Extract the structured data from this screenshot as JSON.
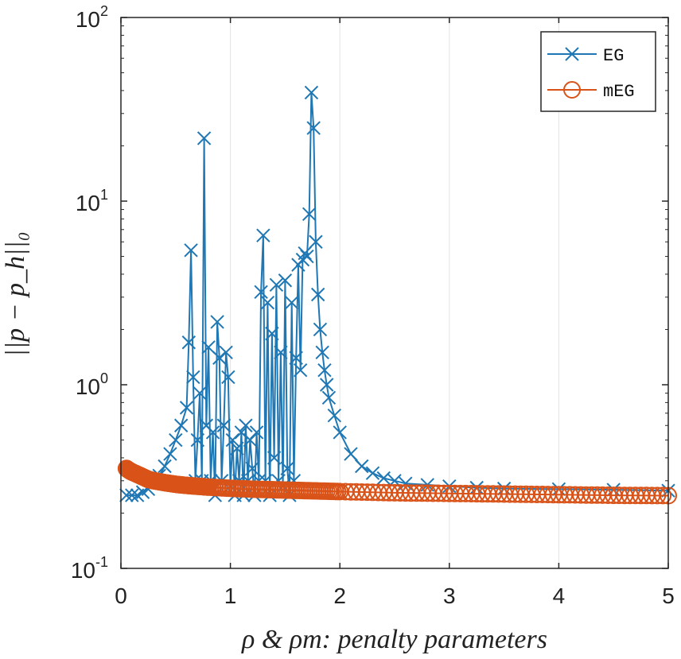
{
  "chart_data": {
    "type": "line",
    "title": "",
    "xlabel": "ρ & ρm: penalty parameters",
    "ylabel": "||p − p_h||₀",
    "xlim": [
      0,
      5
    ],
    "ylim": [
      0.1,
      100
    ],
    "yscale": "log",
    "xticks": [
      0,
      1,
      2,
      3,
      4,
      5
    ],
    "xtick_labels": [
      "0",
      "1",
      "2",
      "3",
      "4",
      "5"
    ],
    "yticks": [
      0.1,
      1,
      10,
      100
    ],
    "ytick_labels": [
      {
        "base": "10",
        "exp": "-1"
      },
      {
        "base": "10",
        "exp": "0"
      },
      {
        "base": "10",
        "exp": "1"
      },
      {
        "base": "10",
        "exp": "2"
      }
    ],
    "grid": "x",
    "legend_position": "top-right",
    "series": [
      {
        "name": "EG",
        "color": "#1f77b4",
        "marker": "x",
        "x": [
          0.05,
          0.1,
          0.15,
          0.2,
          0.25,
          0.3,
          0.35,
          0.4,
          0.45,
          0.5,
          0.55,
          0.6,
          0.62,
          0.64,
          0.66,
          0.68,
          0.7,
          0.72,
          0.74,
          0.76,
          0.78,
          0.8,
          0.82,
          0.84,
          0.86,
          0.88,
          0.9,
          0.92,
          0.94,
          0.96,
          0.98,
          1.0,
          1.02,
          1.04,
          1.06,
          1.08,
          1.1,
          1.12,
          1.14,
          1.16,
          1.18,
          1.2,
          1.22,
          1.24,
          1.26,
          1.28,
          1.3,
          1.32,
          1.34,
          1.36,
          1.38,
          1.4,
          1.42,
          1.44,
          1.46,
          1.48,
          1.5,
          1.52,
          1.54,
          1.56,
          1.58,
          1.6,
          1.62,
          1.64,
          1.66,
          1.68,
          1.7,
          1.72,
          1.74,
          1.76,
          1.78,
          1.8,
          1.82,
          1.84,
          1.86,
          1.88,
          1.9,
          1.95,
          2.0,
          2.1,
          2.2,
          2.3,
          2.4,
          2.5,
          2.6,
          2.8,
          3.0,
          3.25,
          3.5,
          4.0,
          4.5,
          5.0
        ],
        "values": [
          0.25,
          0.25,
          0.25,
          0.26,
          0.27,
          0.29,
          0.32,
          0.36,
          0.42,
          0.5,
          0.6,
          0.75,
          1.7,
          5.4,
          1.1,
          0.3,
          0.5,
          0.9,
          0.3,
          22.0,
          0.6,
          1.6,
          0.3,
          0.55,
          0.25,
          2.2,
          1.4,
          0.3,
          0.6,
          1.5,
          1.1,
          0.28,
          0.5,
          0.25,
          0.45,
          0.3,
          0.55,
          0.25,
          0.6,
          0.3,
          0.5,
          0.35,
          0.25,
          0.55,
          0.3,
          3.2,
          6.5,
          0.3,
          2.8,
          0.25,
          1.9,
          0.4,
          3.5,
          0.3,
          1.5,
          0.28,
          3.7,
          0.35,
          0.25,
          2.8,
          0.3,
          1.4,
          4.5,
          1.2,
          4.8,
          5.2,
          5.0,
          8.5,
          39.0,
          25.0,
          6.0,
          3.1,
          2.0,
          1.5,
          1.2,
          1.0,
          0.85,
          0.68,
          0.55,
          0.42,
          0.36,
          0.33,
          0.31,
          0.3,
          0.29,
          0.285,
          0.28,
          0.275,
          0.272,
          0.27,
          0.268,
          0.265
        ]
      },
      {
        "name": "mEG",
        "color": "#d95319",
        "marker": "o",
        "x": [
          0.05,
          0.08,
          0.1,
          0.15,
          0.2,
          0.25,
          0.3,
          0.4,
          0.5,
          0.6,
          0.7,
          0.8,
          1.0,
          1.2,
          1.4,
          1.6,
          1.8,
          2.0,
          2.5,
          3.0,
          3.5,
          4.0,
          4.5,
          5.0
        ],
        "values": [
          0.35,
          0.34,
          0.335,
          0.325,
          0.315,
          0.305,
          0.3,
          0.293,
          0.287,
          0.283,
          0.28,
          0.277,
          0.273,
          0.27,
          0.268,
          0.266,
          0.264,
          0.262,
          0.258,
          0.256,
          0.254,
          0.252,
          0.25,
          0.249
        ]
      }
    ]
  }
}
